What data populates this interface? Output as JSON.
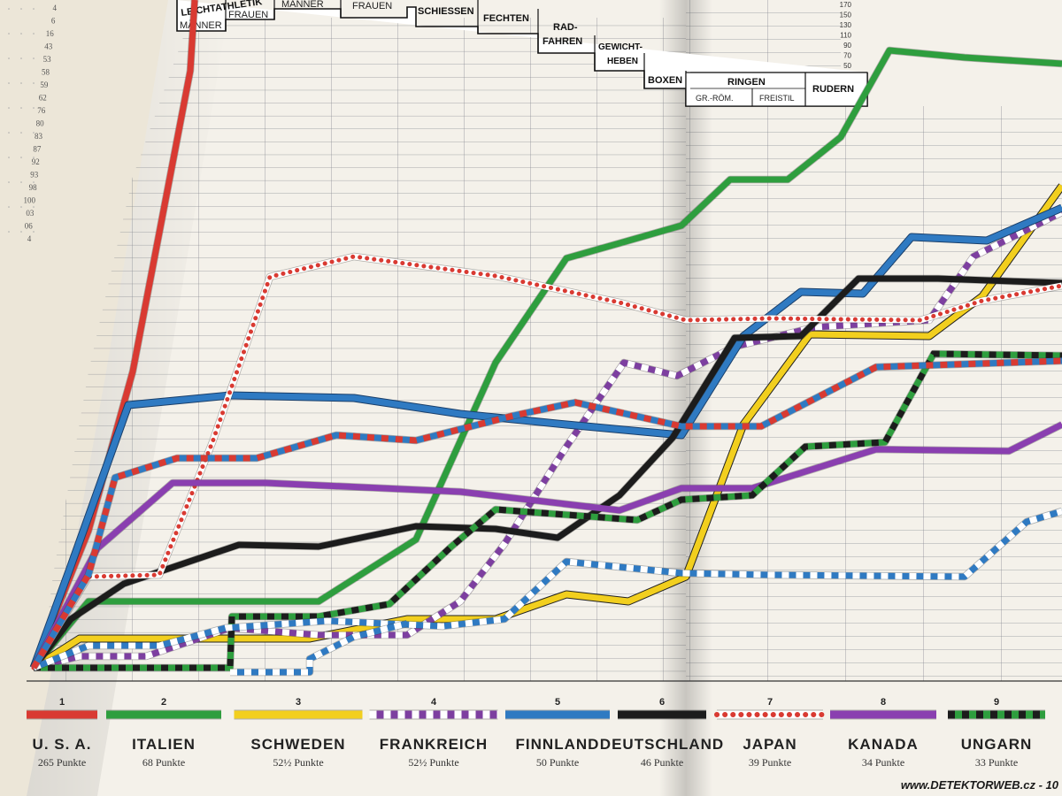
{
  "left_page_numbers": [
    "4",
    "6",
    "16",
    "43",
    "53",
    "58",
    "59",
    "62",
    "76",
    "80",
    "83",
    "87",
    "92",
    "93",
    "98",
    "100",
    "03",
    "06",
    "4"
  ],
  "header": {
    "leichtathletik": "LEICHTATHLETIK",
    "maenner": "MÄNNER",
    "frauen": "FRAUEN",
    "schwimmen_maenner": "MÄNNER",
    "schwimmen_frauen": "FRAUEN",
    "schiessen": "SCHIESSEN",
    "fechten": "FECHTEN",
    "radfahren_1": "RAD-",
    "radfahren_2": "FAHREN",
    "gewichtheben_1": "GEWICHT-",
    "gewichtheben_2": "HEBEN",
    "boxen": "BOXEN",
    "ringen": "RINGEN",
    "ringen_gr": "GR.-RÖM.",
    "ringen_frei": "FREISTIL",
    "rudern": "RUDERN"
  },
  "scale_labels": [
    "170",
    "150",
    "130",
    "110",
    "90",
    "70",
    "50"
  ],
  "nations": [
    {
      "rank": "1",
      "name": "U. S. A.",
      "points": "265 Punkte",
      "color": "#d93a32",
      "pattern": "solid"
    },
    {
      "rank": "2",
      "name": "ITALIEN",
      "points": "68 Punkte",
      "color": "#2e9e3e",
      "pattern": "solid"
    },
    {
      "rank": "3",
      "name": "SCHWEDEN",
      "points": "52½ Punkte",
      "color": "#f2cf1e",
      "pattern": "solid"
    },
    {
      "rank": "4",
      "name": "FRANKREICH",
      "points": "52½ Punkte",
      "color": "#7d3fa0",
      "pattern": "purple-white"
    },
    {
      "rank": "5",
      "name": "FINNLAND",
      "points": "50 Punkte",
      "color": "#2f7ac2",
      "pattern": "solid"
    },
    {
      "rank": "6",
      "name": "DEUTSCHLAND",
      "points": "46 Punkte",
      "color": "#1c1c1c",
      "pattern": "solid"
    },
    {
      "rank": "7",
      "name": "JAPAN",
      "points": "39 Punkte",
      "color": "#d93a32",
      "pattern": "dotted"
    },
    {
      "rank": "8",
      "name": "KANADA",
      "points": "34 Punkte",
      "color": "#8a3fb0",
      "pattern": "solid"
    },
    {
      "rank": "9",
      "name": "UNGARN",
      "points": "33 Punkte",
      "color": "#2e9e3e",
      "pattern": "green-black"
    }
  ],
  "watermark": "www.DETEKTORWEB.cz - 10"
}
